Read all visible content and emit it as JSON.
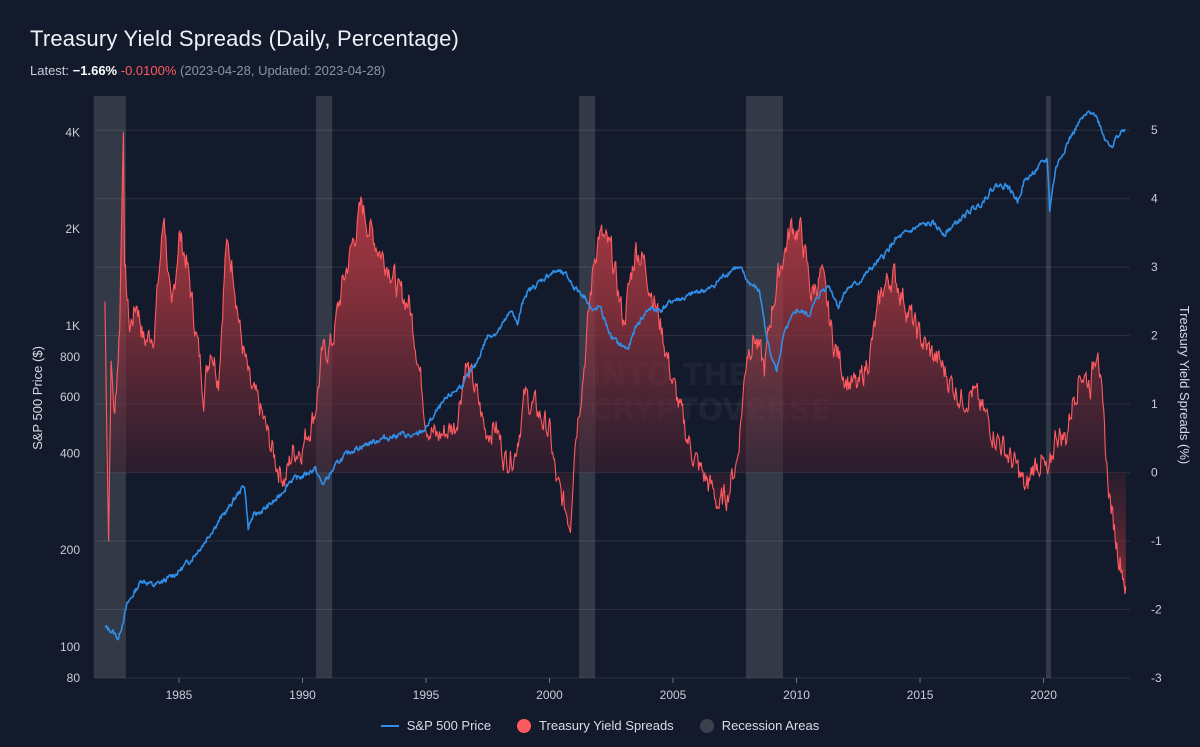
{
  "header": {
    "title": "Treasury Yield Spreads (Daily, Percentage)",
    "latest_label": "Latest:",
    "latest_value": "−1.66%",
    "latest_change": "-0.0100%",
    "latest_dates": "(2023-04-28, Updated: 2023-04-28)"
  },
  "watermark": {
    "line1": "INTO THE",
    "line2": "CRYPTOVERSE"
  },
  "colors": {
    "background": "#131a2b",
    "sp500": "#2f8fe8",
    "spread": "#ff5a5f",
    "recession": "#3a404c"
  },
  "legend": [
    {
      "label": "S&P 500 Price",
      "color": "#2f8fe8",
      "kind": "line"
    },
    {
      "label": "Treasury Yield Spreads",
      "color": "#ff5a5f",
      "kind": "dot"
    },
    {
      "label": "Recession Areas",
      "color": "#3a404c",
      "kind": "dot"
    }
  ],
  "chart_data": {
    "type": "line",
    "title": "Treasury Yield Spreads (Daily, Percentage)",
    "x_range": [
      1981.6,
      2023.5
    ],
    "x_ticks": [
      1985,
      1990,
      1995,
      2000,
      2005,
      2010,
      2015,
      2020
    ],
    "left_axis": {
      "label": "S&P 500 Price ($)",
      "scale": "log",
      "range": [
        80,
        5200
      ],
      "ticks": [
        {
          "value": 80,
          "label": "80"
        },
        {
          "value": 100,
          "label": "100"
        },
        {
          "value": 200,
          "label": "200"
        },
        {
          "value": 400,
          "label": "400"
        },
        {
          "value": 600,
          "label": "600"
        },
        {
          "value": 800,
          "label": "800"
        },
        {
          "value": 1000,
          "label": "1K"
        },
        {
          "value": 2000,
          "label": "2K"
        },
        {
          "value": 4000,
          "label": "4K"
        }
      ]
    },
    "right_axis": {
      "label": "Treasury Yield Spreads (%)",
      "scale": "linear",
      "range": [
        -3,
        5.5
      ],
      "ticks": [
        -3,
        -2,
        -1,
        0,
        1,
        2,
        3,
        4,
        5
      ]
    },
    "recessions": [
      [
        1981.55,
        1982.85
      ],
      [
        1990.55,
        1991.2
      ],
      [
        2001.2,
        2001.85
      ],
      [
        2007.95,
        2009.45
      ],
      [
        2020.1,
        2020.3
      ]
    ],
    "series": [
      {
        "name": "S&P 500 Price",
        "axis": "left",
        "x": [
          1982.0,
          1982.3,
          1982.55,
          1982.7,
          1982.9,
          1983.2,
          1983.5,
          1984.0,
          1984.5,
          1985.0,
          1985.5,
          1986.0,
          1986.5,
          1987.0,
          1987.65,
          1987.8,
          1988.0,
          1988.5,
          1989.0,
          1989.5,
          1990.0,
          1990.5,
          1990.8,
          1991.0,
          1991.5,
          1992.0,
          1993.0,
          1994.0,
          1994.5,
          1995.0,
          1995.5,
          1996.0,
          1996.5,
          1997.0,
          1997.5,
          1997.8,
          1998.0,
          1998.5,
          1998.7,
          1999.0,
          1999.5,
          2000.0,
          2000.3,
          2000.7,
          2001.0,
          2001.5,
          2001.75,
          2002.0,
          2002.5,
          2002.8,
          2003.0,
          2003.2,
          2003.5,
          2004.0,
          2004.5,
          2005.0,
          2005.5,
          2006.0,
          2006.5,
          2007.0,
          2007.5,
          2007.8,
          2008.0,
          2008.5,
          2008.8,
          2009.2,
          2009.5,
          2010.0,
          2010.5,
          2011.0,
          2011.3,
          2011.7,
          2012.0,
          2012.5,
          2013.0,
          2013.5,
          2014.0,
          2014.5,
          2015.0,
          2015.5,
          2016.0,
          2016.5,
          2017.0,
          2017.5,
          2018.0,
          2018.5,
          2018.95,
          2019.2,
          2019.5,
          2020.0,
          2020.15,
          2020.25,
          2020.5,
          2021.0,
          2021.5,
          2022.0,
          2022.3,
          2022.5,
          2022.8,
          2023.0,
          2023.3
        ],
        "values": [
          115,
          112,
          106,
          118,
          135,
          148,
          162,
          155,
          162,
          172,
          188,
          210,
          240,
          270,
          320,
          235,
          255,
          270,
          290,
          330,
          340,
          360,
          320,
          335,
          380,
          410,
          440,
          460,
          450,
          480,
          550,
          610,
          660,
          750,
          930,
          950,
          980,
          1120,
          1000,
          1250,
          1350,
          1450,
          1480,
          1430,
          1320,
          1220,
          1100,
          1150,
          920,
          880,
          860,
          850,
          990,
          1130,
          1120,
          1200,
          1220,
          1280,
          1300,
          1420,
          1520,
          1480,
          1380,
          1280,
          900,
          720,
          940,
          1120,
          1080,
          1280,
          1340,
          1150,
          1300,
          1360,
          1500,
          1640,
          1850,
          1950,
          2050,
          2080,
          1940,
          2100,
          2270,
          2420,
          2720,
          2750,
          2450,
          2800,
          2950,
          3230,
          3300,
          2300,
          3100,
          3750,
          4350,
          4700,
          4200,
          3800,
          3650,
          3900,
          4100
        ]
      },
      {
        "name": "Treasury Yield Spreads",
        "axis": "right",
        "x": [
          1982.0,
          1982.15,
          1982.25,
          1982.4,
          1982.6,
          1982.75,
          1982.8,
          1983.0,
          1983.3,
          1983.6,
          1984.0,
          1984.4,
          1984.7,
          1985.0,
          1985.3,
          1985.6,
          1986.0,
          1986.3,
          1986.6,
          1986.9,
          1987.2,
          1987.5,
          1987.9,
          1988.3,
          1988.7,
          1989.0,
          1989.3,
          1989.6,
          1990.0,
          1990.5,
          1990.8,
          1991.2,
          1991.6,
          1992.0,
          1992.4,
          1992.8,
          1993.2,
          1993.6,
          1993.9,
          1994.3,
          1994.6,
          1995.0,
          1995.4,
          1995.8,
          1996.2,
          1996.6,
          1997.0,
          1997.4,
          1997.8,
          1998.2,
          1998.6,
          1999.0,
          1999.5,
          2000.0,
          2000.3,
          2000.6,
          2000.85,
          2001.0,
          2001.4,
          2001.8,
          2002.0,
          2002.5,
          2003.0,
          2003.5,
          2003.8,
          2004.2,
          2004.6,
          2005.0,
          2005.5,
          2006.0,
          2006.5,
          2006.9,
          2007.2,
          2007.6,
          2008.0,
          2008.3,
          2008.7,
          2009.0,
          2009.4,
          2009.8,
          2010.2,
          2010.6,
          2011.0,
          2011.5,
          2012.0,
          2012.5,
          2013.0,
          2013.5,
          2013.9,
          2014.3,
          2014.8,
          2015.3,
          2015.8,
          2016.3,
          2016.7,
          2017.1,
          2017.5,
          2018.0,
          2018.5,
          2019.0,
          2019.3,
          2019.6,
          2019.9,
          2020.2,
          2020.5,
          2020.9,
          2021.2,
          2021.5,
          2021.9,
          2022.2,
          2022.4,
          2022.6,
          2022.8,
          2023.0,
          2023.2,
          2023.33
        ],
        "values": [
          2.5,
          -0.9,
          1.6,
          0.8,
          2.2,
          5.2,
          3.0,
          2.1,
          2.5,
          1.9,
          2.1,
          3.8,
          2.2,
          3.5,
          3.1,
          2.3,
          1.2,
          1.9,
          1.4,
          3.3,
          3.0,
          2.0,
          1.2,
          0.9,
          0.4,
          0.1,
          -0.1,
          0.3,
          0.4,
          0.9,
          1.7,
          1.9,
          2.7,
          3.3,
          3.9,
          3.5,
          3.2,
          3.0,
          2.6,
          2.5,
          1.9,
          0.8,
          0.5,
          0.6,
          0.7,
          1.6,
          1.2,
          0.6,
          0.7,
          0.2,
          0.3,
          1.1,
          0.9,
          0.6,
          -0.2,
          -0.5,
          -0.7,
          0.4,
          1.6,
          3.1,
          3.5,
          3.2,
          2.2,
          3.3,
          3.1,
          2.6,
          2.0,
          1.3,
          0.6,
          0.1,
          -0.2,
          -0.5,
          -0.3,
          0.2,
          1.8,
          2.0,
          1.5,
          2.4,
          3.1,
          3.6,
          3.5,
          2.6,
          2.9,
          1.9,
          1.4,
          1.2,
          1.8,
          2.7,
          2.9,
          2.6,
          2.1,
          1.8,
          1.6,
          1.3,
          1.1,
          1.2,
          0.9,
          0.6,
          0.3,
          0.0,
          -0.3,
          0.1,
          0.2,
          -0.15,
          0.6,
          0.5,
          1.1,
          1.5,
          1.3,
          2.0,
          0.8,
          -0.1,
          -0.7,
          -1.1,
          -1.4,
          -1.66
        ]
      }
    ]
  }
}
